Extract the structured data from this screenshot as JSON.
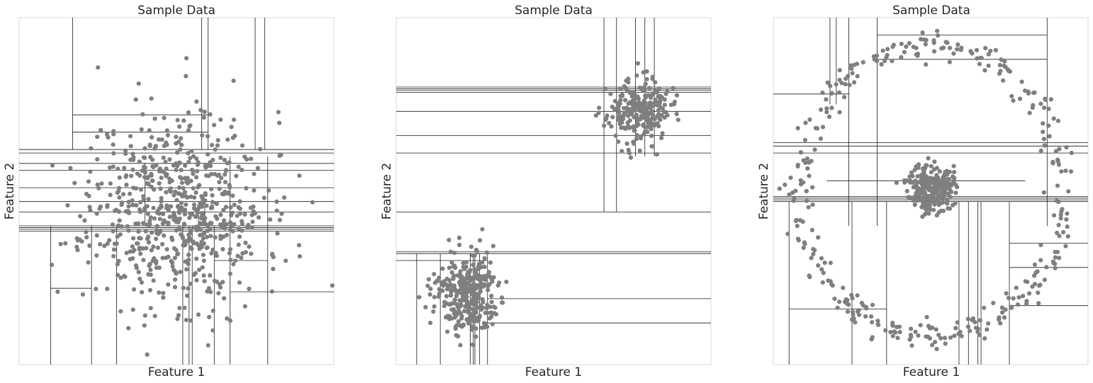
{
  "colors": {
    "points": "#7f7f7f",
    "splits": "#1a1a1a",
    "frame": "#d9d9d9"
  },
  "chart_data": [
    {
      "type": "scatter",
      "title": "Sample Data",
      "xlabel": "Feature 1",
      "ylabel": "Feature 2",
      "xlim": [
        0,
        1
      ],
      "ylim": [
        0,
        1
      ],
      "grid": false,
      "distribution": "single broad gaussian cloud",
      "clusters": [
        {
          "center": [
            0.5,
            0.45
          ],
          "spread": [
            0.14,
            0.14
          ],
          "n": 700
        }
      ],
      "seed": 11,
      "partition": {
        "v": [
          [
            0.17,
            0.62,
            1
          ],
          [
            0.58,
            0.62,
            1
          ],
          [
            0.6,
            0.62,
            1
          ],
          [
            0.78,
            0.62,
            1
          ],
          [
            0.75,
            0.62,
            1
          ],
          [
            0.1,
            0,
            0.4
          ],
          [
            0.23,
            0,
            0.4
          ],
          [
            0.31,
            0,
            0.4
          ],
          [
            0.52,
            0,
            0.4
          ],
          [
            0.54,
            0,
            0.4
          ],
          [
            0.55,
            0,
            0.4
          ],
          [
            0.62,
            0,
            0.4
          ],
          [
            0.67,
            0,
            0.6
          ],
          [
            0.79,
            0,
            0.6
          ],
          [
            0.4,
            0.4,
            0.58
          ],
          [
            0.57,
            0.4,
            0.47
          ],
          [
            0.59,
            0.4,
            0.47
          ]
        ],
        "h": [
          [
            0.62,
            0,
            1
          ],
          [
            0.61,
            0,
            1
          ],
          [
            0.58,
            0,
            1
          ],
          [
            0.56,
            0,
            1
          ],
          [
            0.4,
            0,
            1
          ],
          [
            0.395,
            0,
            1
          ],
          [
            0.39,
            0,
            1
          ],
          [
            0.385,
            0,
            1
          ],
          [
            0.47,
            0,
            1
          ],
          [
            0.44,
            0,
            1
          ],
          [
            0.51,
            0,
            1
          ],
          [
            0.67,
            0.17,
            0.6
          ],
          [
            0.72,
            0.17,
            0.6
          ],
          [
            0.3,
            0.62,
            0.79
          ],
          [
            0.22,
            0.1,
            0.23
          ],
          [
            0.21,
            0.67,
            1
          ]
        ]
      }
    },
    {
      "type": "scatter",
      "title": "Sample Data",
      "xlabel": "Feature 1",
      "ylabel": "Feature 2",
      "xlim": [
        0,
        1
      ],
      "ylim": [
        0,
        1
      ],
      "grid": false,
      "distribution": "two compact blobs",
      "clusters": [
        {
          "center": [
            0.77,
            0.73
          ],
          "spread": [
            0.05,
            0.045
          ],
          "n": 260
        },
        {
          "center": [
            0.22,
            0.2
          ],
          "spread": [
            0.05,
            0.06
          ],
          "n": 340
        }
      ],
      "seed": 23,
      "partition": {
        "v": [
          [
            0.66,
            0.44,
            1
          ],
          [
            0.7,
            0.44,
            1
          ],
          [
            0.76,
            0.6,
            1
          ],
          [
            0.79,
            0.6,
            1
          ],
          [
            0.82,
            0.6,
            1
          ],
          [
            0.065,
            0,
            0.32
          ],
          [
            0.14,
            0,
            0.32
          ],
          [
            0.235,
            0,
            0.32
          ],
          [
            0.245,
            0,
            0.32
          ],
          [
            0.25,
            0,
            0.32
          ],
          [
            0.265,
            0,
            0.32
          ],
          [
            0.29,
            0,
            0.32
          ]
        ],
        "h": [
          [
            0.8,
            0,
            1
          ],
          [
            0.795,
            0,
            1
          ],
          [
            0.79,
            0,
            1
          ],
          [
            0.785,
            0,
            1
          ],
          [
            0.73,
            0,
            1
          ],
          [
            0.66,
            0,
            1
          ],
          [
            0.61,
            0,
            1
          ],
          [
            0.44,
            0,
            1
          ],
          [
            0.325,
            0,
            1
          ],
          [
            0.32,
            0,
            1
          ],
          [
            0.19,
            0.29,
            1
          ],
          [
            0.12,
            0.29,
            1
          ],
          [
            0.3,
            0,
            0.29
          ]
        ]
      }
    },
    {
      "type": "scatter",
      "title": "Sample Data",
      "xlabel": "Feature 1",
      "ylabel": "Feature 2",
      "xlim": [
        0,
        1
      ],
      "ylim": [
        0,
        1
      ],
      "grid": false,
      "distribution": "concentric: dense inner blob inside a ring",
      "clusters": [
        {
          "center": [
            0.5,
            0.51
          ],
          "spread": [
            0.035,
            0.035
          ],
          "n": 260
        }
      ],
      "ring": {
        "center": [
          0.5,
          0.5
        ],
        "radius": [
          0.42,
          0.45
        ],
        "noise": 0.02,
        "n": 360
      },
      "seed": 37,
      "partition": {
        "v": [
          [
            0.18,
            0.75,
            1
          ],
          [
            0.2,
            0.75,
            1
          ],
          [
            0.24,
            0.4,
            1
          ],
          [
            0.33,
            0.4,
            1
          ],
          [
            0.87,
            0.4,
            1
          ],
          [
            0.05,
            0,
            0.47
          ],
          [
            0.25,
            0,
            0.47
          ],
          [
            0.36,
            0,
            0.47
          ],
          [
            0.59,
            0,
            0.47
          ],
          [
            0.62,
            0,
            0.47
          ],
          [
            0.65,
            0,
            0.47
          ],
          [
            0.66,
            0,
            0.47
          ],
          [
            0.75,
            0,
            0.47
          ]
        ],
        "h": [
          [
            0.47,
            0,
            1
          ],
          [
            0.475,
            0,
            1
          ],
          [
            0.48,
            0,
            1
          ],
          [
            0.485,
            0,
            1
          ],
          [
            0.63,
            0,
            1
          ],
          [
            0.64,
            0,
            1
          ],
          [
            0.61,
            0,
            1
          ],
          [
            0.53,
            0.17,
            0.8
          ],
          [
            0.78,
            0,
            0.24
          ],
          [
            0.88,
            0.33,
            0.87
          ],
          [
            0.95,
            0.33,
            0.87
          ],
          [
            0.35,
            0.75,
            1
          ],
          [
            0.28,
            0.75,
            1
          ],
          [
            0.17,
            0.75,
            1
          ],
          [
            0.16,
            0.05,
            0.36
          ]
        ]
      }
    }
  ]
}
